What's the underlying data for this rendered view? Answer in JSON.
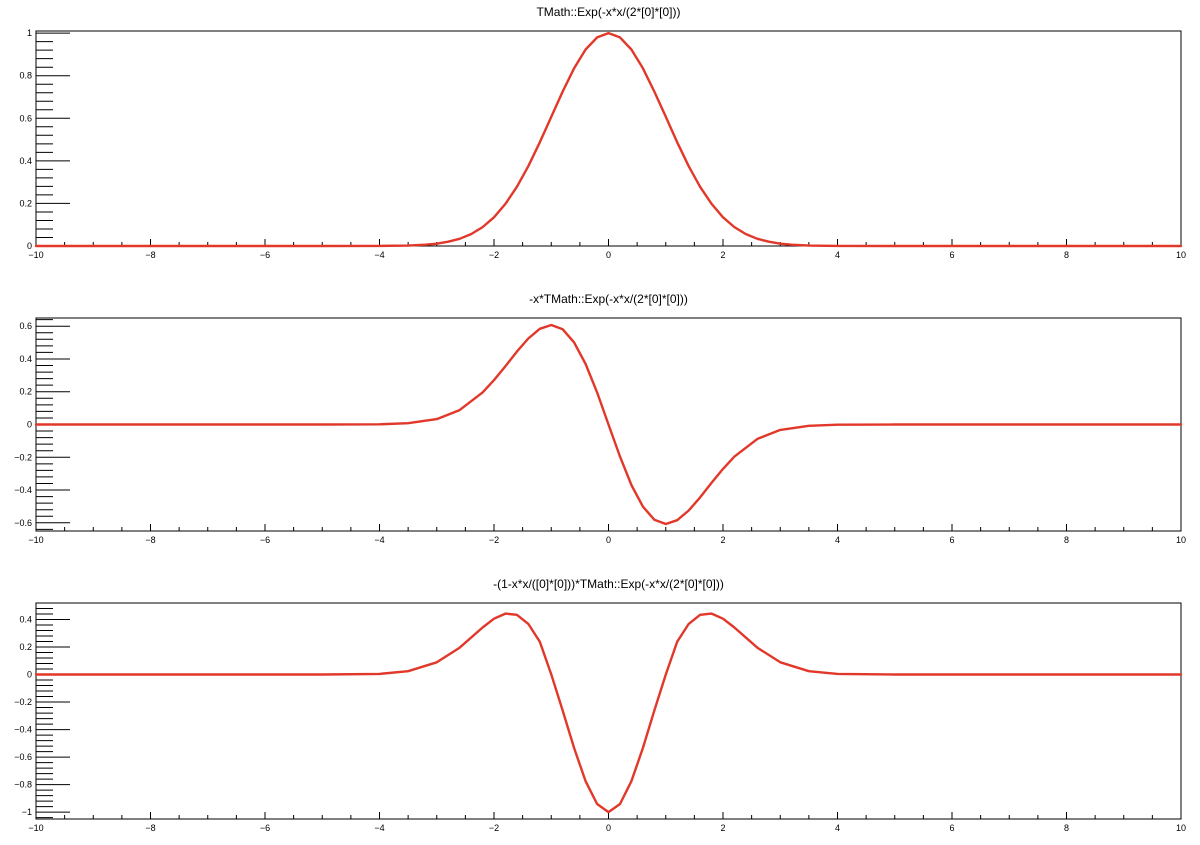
{
  "colors": {
    "curve": "#e1382a",
    "frame": "#000000",
    "background": "#ffffff"
  },
  "chart_data": [
    {
      "type": "line",
      "title": "TMath::Exp(-x*x/(2*[0]*[0]))",
      "xlabel": "",
      "ylabel": "",
      "xlim": [
        -10,
        10
      ],
      "ylim": [
        0,
        1.01
      ],
      "xticks": [
        -10,
        -8,
        -6,
        -4,
        -2,
        0,
        2,
        4,
        6,
        8,
        10
      ],
      "xtick_labels": [
        "−10",
        "−8",
        "−6",
        "−4",
        "−2",
        "0",
        "2",
        "4",
        "6",
        "8",
        "10"
      ],
      "yticks": [
        0,
        0.2,
        0.4,
        0.6,
        0.8,
        1
      ],
      "ytick_labels": [
        "0",
        "0.2",
        "0.4",
        "0.6",
        "0.8",
        "1"
      ],
      "grid": false,
      "series": [
        {
          "x": [
            -10,
            -9,
            -8,
            -7,
            -6,
            -5,
            -4,
            -3.5,
            -3.2,
            -3,
            -2.8,
            -2.6,
            -2.4,
            -2.2,
            -2,
            -1.8,
            -1.6,
            -1.4,
            -1.2,
            -1,
            -0.8,
            -0.6,
            -0.4,
            -0.2,
            0,
            0.2,
            0.4,
            0.6,
            0.8,
            1,
            1.2,
            1.4,
            1.6,
            1.8,
            2,
            2.2,
            2.4,
            2.6,
            2.8,
            3,
            3.2,
            3.5,
            4,
            5,
            6,
            7,
            8,
            9,
            10
          ],
          "y": [
            0,
            0,
            0,
            0,
            0,
            0,
            0.0003,
            0.002,
            0.006,
            0.011,
            0.02,
            0.034,
            0.056,
            0.089,
            0.135,
            0.198,
            0.278,
            0.375,
            0.487,
            0.607,
            0.726,
            0.835,
            0.923,
            0.98,
            1,
            0.98,
            0.923,
            0.835,
            0.726,
            0.607,
            0.487,
            0.375,
            0.278,
            0.198,
            0.135,
            0.089,
            0.056,
            0.034,
            0.02,
            0.011,
            0.006,
            0.002,
            0.0003,
            0,
            0,
            0,
            0,
            0,
            0
          ]
        }
      ]
    },
    {
      "type": "line",
      "title": "-x*TMath::Exp(-x*x/(2*[0]*[0]))",
      "xlabel": "",
      "ylabel": "",
      "xlim": [
        -10,
        10
      ],
      "ylim": [
        -0.65,
        0.65
      ],
      "xticks": [
        -10,
        -8,
        -6,
        -4,
        -2,
        0,
        2,
        4,
        6,
        8,
        10
      ],
      "xtick_labels": [
        "−10",
        "−8",
        "−6",
        "−4",
        "−2",
        "0",
        "2",
        "4",
        "6",
        "8",
        "10"
      ],
      "yticks": [
        -0.6,
        -0.4,
        -0.2,
        0,
        0.2,
        0.4,
        0.6
      ],
      "ytick_labels": [
        "−0.6",
        "−0.4",
        "−0.2",
        "0",
        "0.2",
        "0.4",
        "0.6"
      ],
      "grid": false,
      "series": [
        {
          "x": [
            -10,
            -9,
            -8,
            -7,
            -6,
            -5,
            -4,
            -3.5,
            -3,
            -2.6,
            -2.2,
            -2,
            -1.8,
            -1.6,
            -1.4,
            -1.2,
            -1,
            -0.8,
            -0.6,
            -0.4,
            -0.2,
            0,
            0.2,
            0.4,
            0.6,
            0.8,
            1,
            1.2,
            1.4,
            1.6,
            1.8,
            2,
            2.2,
            2.6,
            3,
            3.5,
            4,
            5,
            6,
            7,
            8,
            9,
            10
          ],
          "y": [
            0,
            0,
            0,
            0,
            0,
            0,
            0.001,
            0.008,
            0.033,
            0.088,
            0.196,
            0.271,
            0.356,
            0.445,
            0.525,
            0.584,
            0.607,
            0.581,
            0.501,
            0.369,
            0.196,
            0,
            -0.196,
            -0.369,
            -0.501,
            -0.581,
            -0.607,
            -0.584,
            -0.525,
            -0.445,
            -0.356,
            -0.271,
            -0.196,
            -0.088,
            -0.033,
            -0.008,
            -0.001,
            0,
            0,
            0,
            0,
            0,
            0
          ]
        }
      ]
    },
    {
      "type": "line",
      "title": "-(1-x*x/([0]*[0]))*TMath::Exp(-x*x/(2*[0]*[0]))",
      "xlabel": "",
      "ylabel": "",
      "xlim": [
        -10,
        10
      ],
      "ylim": [
        -1.05,
        0.52
      ],
      "xticks": [
        -10,
        -8,
        -6,
        -4,
        -2,
        0,
        2,
        4,
        6,
        8,
        10
      ],
      "xtick_labels": [
        "−10",
        "−8",
        "−6",
        "−4",
        "−2",
        "0",
        "2",
        "4",
        "6",
        "8",
        "10"
      ],
      "yticks": [
        -1,
        -0.8,
        -0.6,
        -0.4,
        -0.2,
        0,
        0.2,
        0.4
      ],
      "ytick_labels": [
        "−1",
        "−0.8",
        "−0.6",
        "−0.4",
        "−0.2",
        "0",
        "0.2",
        "0.4"
      ],
      "grid": false,
      "series": [
        {
          "x": [
            -10,
            -9,
            -8,
            -7,
            -6,
            -5,
            -4,
            -3.5,
            -3,
            -2.6,
            -2.2,
            -2,
            -1.8,
            -1.6,
            -1.4,
            -1.2,
            -1,
            -0.8,
            -0.6,
            -0.4,
            -0.2,
            0,
            0.2,
            0.4,
            0.6,
            0.8,
            1,
            1.2,
            1.4,
            1.6,
            1.8,
            2,
            2.2,
            2.6,
            3,
            3.5,
            4,
            5,
            6,
            7,
            8,
            9,
            10
          ],
          "y": [
            0,
            0,
            0,
            0,
            0,
            0,
            0.005,
            0.024,
            0.089,
            0.195,
            0.342,
            0.406,
            0.443,
            0.434,
            0.368,
            0.239,
            0,
            -0.262,
            -0.534,
            -0.775,
            -0.941,
            -1,
            -0.941,
            -0.775,
            -0.534,
            -0.262,
            0,
            0.239,
            0.368,
            0.434,
            0.443,
            0.406,
            0.342,
            0.195,
            0.089,
            0.024,
            0.005,
            0,
            0,
            0,
            0,
            0,
            0
          ]
        }
      ]
    }
  ]
}
